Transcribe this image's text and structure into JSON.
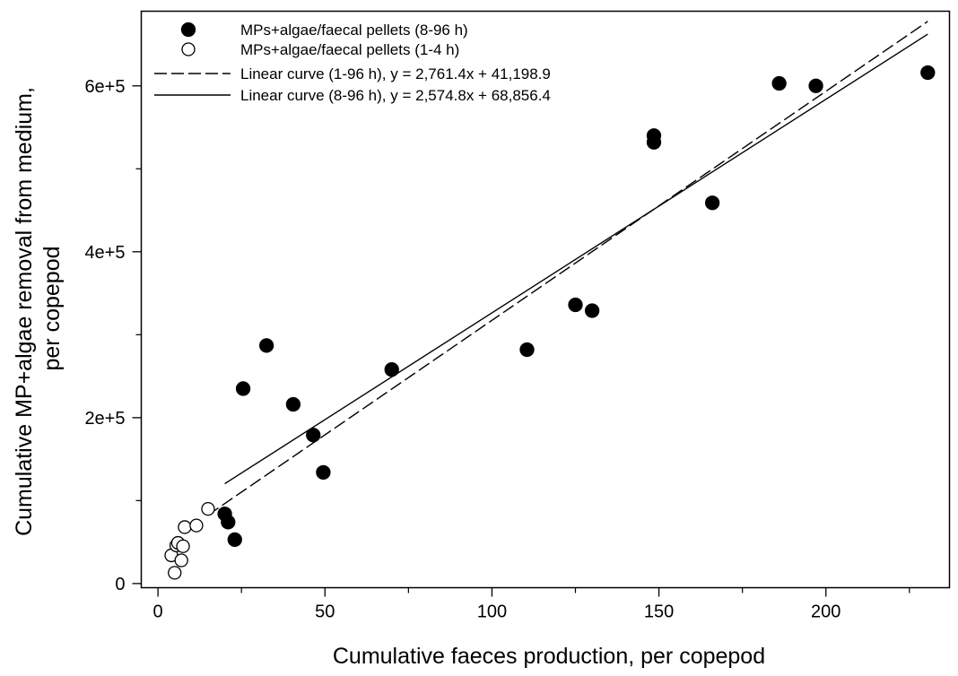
{
  "chart_data": {
    "type": "scatter",
    "xlabel": "Cumulative faeces production, per copepod",
    "ylabel_lines": [
      "Cumulative MP+algae removal from medium,",
      "per copepod"
    ],
    "xlim": [
      -5,
      237
    ],
    "ylim": [
      -5000,
      690000
    ],
    "x_ticks": [
      0,
      50,
      100,
      150,
      200
    ],
    "x_tick_labels": [
      "0",
      "50",
      "100",
      "150",
      "200"
    ],
    "x_minor_ticks": [
      25,
      75,
      125,
      175,
      225
    ],
    "y_ticks": [
      0,
      200000,
      400000,
      600000
    ],
    "y_tick_labels": [
      "0",
      "2e+5",
      "4e+5",
      "6e+5"
    ],
    "y_minor_ticks": [
      100000,
      300000,
      500000
    ],
    "grid": false,
    "legend_position": "top-left",
    "series": [
      {
        "name": "MPs+algae/faecal pellets (8-96 h)",
        "kind": "points",
        "marker": "filled-circle",
        "color": "#000000",
        "points": [
          [
            20,
            84000
          ],
          [
            21,
            74000
          ],
          [
            23,
            53000
          ],
          [
            25.5,
            235000
          ],
          [
            32.5,
            287000
          ],
          [
            40.5,
            216000
          ],
          [
            46.5,
            179000
          ],
          [
            49.5,
            134000
          ],
          [
            70,
            258000
          ],
          [
            110.5,
            282000
          ],
          [
            125,
            336000
          ],
          [
            130,
            329000
          ],
          [
            148.5,
            540000
          ],
          [
            148.5,
            532000
          ],
          [
            166,
            459000
          ],
          [
            186,
            603000
          ],
          [
            197,
            600000
          ],
          [
            230.5,
            616000
          ]
        ]
      },
      {
        "name": "MPs+algae/faecal pellets (1-4 h)",
        "kind": "points",
        "marker": "open-circle",
        "color": "#000000",
        "points": [
          [
            4,
            34000
          ],
          [
            5,
            13000
          ],
          [
            5.5,
            46000
          ],
          [
            6,
            49000
          ],
          [
            7,
            28000
          ],
          [
            7.5,
            45000
          ],
          [
            8,
            68000
          ],
          [
            11.5,
            70000
          ],
          [
            15,
            90000
          ]
        ]
      },
      {
        "name": "Linear curve (1-96 h), y = 2,761.4x + 41,198.9",
        "kind": "line",
        "dash": "dashed",
        "slope": 2761.4,
        "intercept": 41198.9,
        "x_range": [
          15,
          230.5
        ]
      },
      {
        "name": "Linear curve (8-96 h), y = 2,574.8x + 68,856.4",
        "kind": "line",
        "dash": "solid",
        "slope": 2574.8,
        "intercept": 68856.4,
        "x_range": [
          20,
          230.5
        ]
      }
    ]
  }
}
